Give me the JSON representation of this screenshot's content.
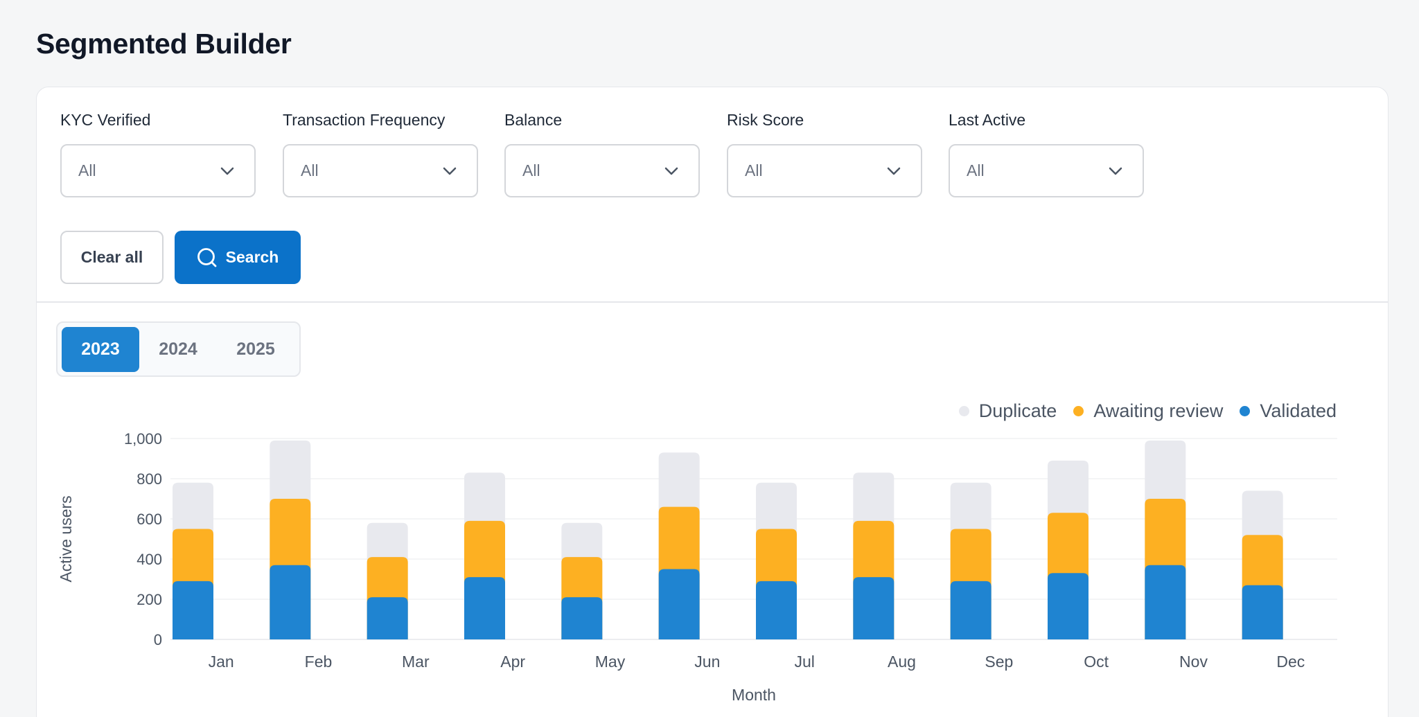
{
  "page": {
    "title": "Segmented Builder"
  },
  "filters": [
    {
      "label": "KYC Verified",
      "value": "All"
    },
    {
      "label": "Transaction Frequency",
      "value": "All"
    },
    {
      "label": "Balance",
      "value": "All"
    },
    {
      "label": "Risk Score",
      "value": "All"
    },
    {
      "label": "Last Active",
      "value": "All"
    }
  ],
  "actions": {
    "clear_label": "Clear all",
    "search_label": "Search"
  },
  "year_tabs": {
    "items": [
      "2023",
      "2024",
      "2025"
    ],
    "selected": "2023"
  },
  "colors": {
    "duplicate": "#e8e9ee",
    "awaiting": "#fdb022",
    "validated": "#1f84d1",
    "accent": "#0b72c9"
  },
  "chart_data": {
    "type": "bar",
    "stacked": true,
    "categories": [
      "Jan",
      "Feb",
      "Mar",
      "Apr",
      "May",
      "Jun",
      "Jul",
      "Aug",
      "Sep",
      "Oct",
      "Nov",
      "Dec"
    ],
    "series": [
      {
        "name": "Validated",
        "color": "#1f84d1",
        "values": [
          290,
          370,
          210,
          310,
          210,
          350,
          290,
          310,
          290,
          330,
          370,
          270
        ]
      },
      {
        "name": "Awaiting review",
        "color": "#fdb022",
        "values": [
          260,
          330,
          200,
          280,
          200,
          310,
          260,
          280,
          260,
          300,
          330,
          250
        ]
      },
      {
        "name": "Duplicate",
        "color": "#e8e9ee",
        "values": [
          230,
          290,
          170,
          240,
          170,
          270,
          230,
          240,
          230,
          260,
          290,
          220
        ]
      }
    ],
    "legend_order": [
      "Duplicate",
      "Awaiting review",
      "Validated"
    ],
    "xlabel": "Month",
    "ylabel": "Active users",
    "yticks": [
      "0",
      "200",
      "400",
      "600",
      "800",
      "1,000"
    ],
    "ylim": [
      0,
      1000
    ],
    "grid": true,
    "legend_position": "top-right"
  }
}
